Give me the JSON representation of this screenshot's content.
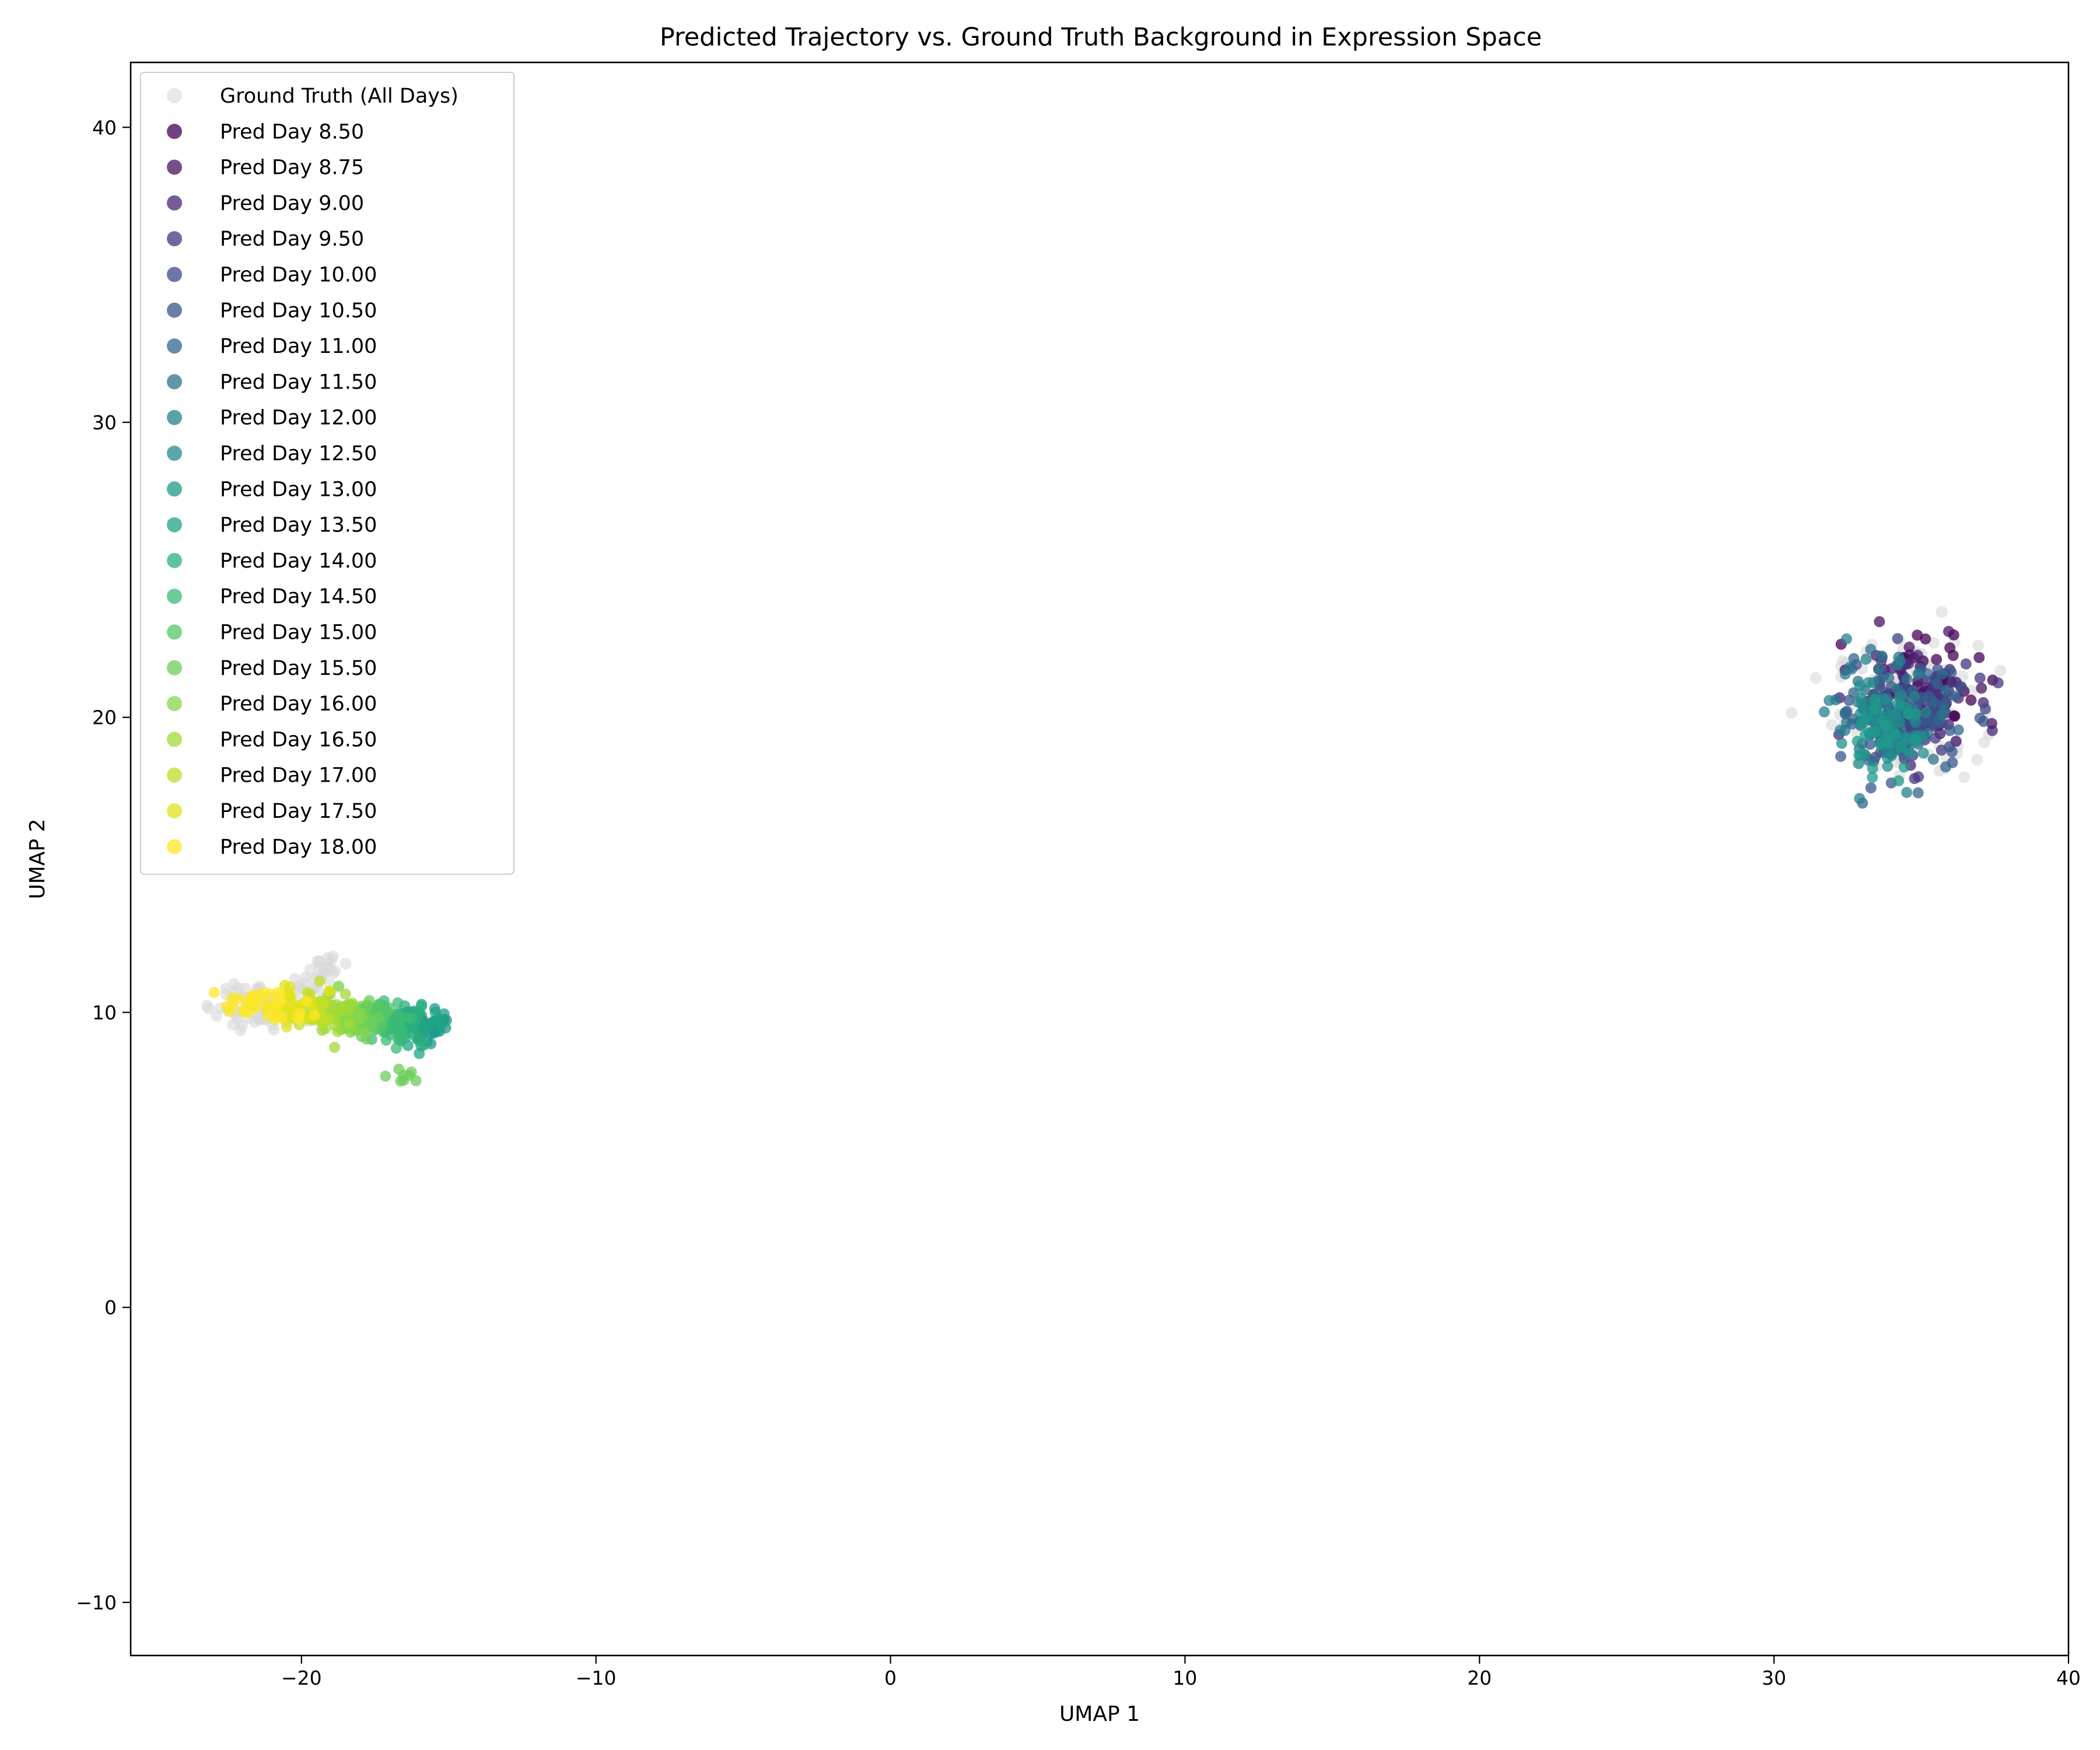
{
  "chart_data": {
    "type": "scatter",
    "title": "Predicted Trajectory vs. Ground Truth Background in Expression Space",
    "xlabel": "UMAP 1",
    "ylabel": "UMAP 2",
    "xlim": [
      -25.8,
      40.0
    ],
    "ylim": [
      -11.8,
      42.2
    ],
    "xticks": [
      -20,
      -10,
      0,
      10,
      20,
      30,
      40
    ],
    "yticks": [
      -10,
      0,
      10,
      20,
      30,
      40
    ],
    "xtick_labels": [
      "−20",
      "−10",
      "0",
      "10",
      "20",
      "30",
      "40"
    ],
    "ytick_labels": [
      "−10",
      "0",
      "10",
      "20",
      "30",
      "40"
    ],
    "grid": false,
    "legend_position": "upper-left",
    "series": [
      {
        "name": "Ground Truth (All Days)",
        "color": "#d9d9d9",
        "clusters": [
          {
            "cx": 34.5,
            "cy": 20.3,
            "sx": 1.2,
            "sy": 1.1,
            "n": 160
          },
          {
            "cx": -21.0,
            "cy": 10.3,
            "sx": 1.1,
            "sy": 0.45,
            "n": 90
          },
          {
            "cx": -19.3,
            "cy": 11.3,
            "sx": 0.4,
            "sy": 0.35,
            "n": 25
          }
        ]
      },
      {
        "name": "Pred Day 8.50",
        "color": "#440154",
        "clusters": [
          {
            "cx": 35.0,
            "cy": 21.0,
            "sx": 1.0,
            "sy": 0.9,
            "n": 40
          }
        ]
      },
      {
        "name": "Pred Day 8.75",
        "color": "#471365",
        "clusters": [
          {
            "cx": 34.8,
            "cy": 20.8,
            "sx": 1.0,
            "sy": 0.9,
            "n": 40
          }
        ]
      },
      {
        "name": "Pred Day 9.00",
        "color": "#482475",
        "clusters": [
          {
            "cx": 34.7,
            "cy": 20.6,
            "sx": 1.0,
            "sy": 0.9,
            "n": 40
          }
        ]
      },
      {
        "name": "Pred Day 9.50",
        "color": "#453581",
        "clusters": [
          {
            "cx": 34.7,
            "cy": 20.3,
            "sx": 1.0,
            "sy": 0.9,
            "n": 40
          }
        ]
      },
      {
        "name": "Pred Day 10.00",
        "color": "#3f4889",
        "clusters": [
          {
            "cx": 34.6,
            "cy": 20.0,
            "sx": 1.0,
            "sy": 0.9,
            "n": 40
          }
        ]
      },
      {
        "name": "Pred Day 10.50",
        "color": "#39558c",
        "clusters": [
          {
            "cx": 34.5,
            "cy": 19.8,
            "sx": 1.0,
            "sy": 0.9,
            "n": 40
          }
        ]
      },
      {
        "name": "Pred Day 11.00",
        "color": "#32658e",
        "clusters": [
          {
            "cx": 34.3,
            "cy": 20.1,
            "sx": 1.1,
            "sy": 1.0,
            "n": 40
          }
        ]
      },
      {
        "name": "Pred Day 11.50",
        "color": "#2c728e",
        "clusters": [
          {
            "cx": 34.1,
            "cy": 20.2,
            "sx": 1.1,
            "sy": 1.0,
            "n": 40
          }
        ]
      },
      {
        "name": "Pred Day 12.00",
        "color": "#27808e",
        "clusters": [
          {
            "cx": 33.8,
            "cy": 19.8,
            "sx": 0.9,
            "sy": 1.0,
            "n": 40
          }
        ]
      },
      {
        "name": "Pred Day 12.50",
        "color": "#228c8d",
        "clusters": [
          {
            "cx": 33.6,
            "cy": 19.5,
            "sx": 0.7,
            "sy": 0.6,
            "n": 40
          }
        ]
      },
      {
        "name": "Pred Day 13.00",
        "color": "#1f9a8a",
        "clusters": [
          {
            "cx": 33.6,
            "cy": 19.4,
            "sx": 0.6,
            "sy": 0.6,
            "n": 30
          },
          {
            "cx": -15.5,
            "cy": 9.5,
            "sx": 0.25,
            "sy": 0.3,
            "n": 25
          }
        ]
      },
      {
        "name": "Pred Day 13.50",
        "color": "#20a486",
        "clusters": [
          {
            "cx": -15.9,
            "cy": 9.6,
            "sx": 0.3,
            "sy": 0.3,
            "n": 30
          }
        ]
      },
      {
        "name": "Pred Day 14.00",
        "color": "#29af7f",
        "clusters": [
          {
            "cx": -16.4,
            "cy": 9.6,
            "sx": 0.3,
            "sy": 0.35,
            "n": 30
          }
        ]
      },
      {
        "name": "Pred Day 14.50",
        "color": "#3bbb75",
        "clusters": [
          {
            "cx": -16.9,
            "cy": 9.7,
            "sx": 0.3,
            "sy": 0.35,
            "n": 30
          }
        ]
      },
      {
        "name": "Pred Day 15.00",
        "color": "#54c568",
        "clusters": [
          {
            "cx": -17.4,
            "cy": 9.8,
            "sx": 0.3,
            "sy": 0.35,
            "n": 30
          }
        ]
      },
      {
        "name": "Pred Day 15.50",
        "color": "#6ccd5a",
        "clusters": [
          {
            "cx": -17.9,
            "cy": 9.8,
            "sx": 0.3,
            "sy": 0.35,
            "n": 30
          },
          {
            "cx": -16.6,
            "cy": 7.9,
            "sx": 0.25,
            "sy": 0.12,
            "n": 8
          }
        ]
      },
      {
        "name": "Pred Day 16.00",
        "color": "#86d549",
        "clusters": [
          {
            "cx": -18.4,
            "cy": 9.9,
            "sx": 0.3,
            "sy": 0.35,
            "n": 30
          }
        ]
      },
      {
        "name": "Pred Day 16.50",
        "color": "#a2da37",
        "clusters": [
          {
            "cx": -18.9,
            "cy": 10.0,
            "sx": 0.3,
            "sy": 0.35,
            "n": 30
          }
        ]
      },
      {
        "name": "Pred Day 17.00",
        "color": "#c0df25",
        "clusters": [
          {
            "cx": -19.5,
            "cy": 10.1,
            "sx": 0.35,
            "sy": 0.35,
            "n": 30
          }
        ]
      },
      {
        "name": "Pred Day 17.50",
        "color": "#dfe318",
        "clusters": [
          {
            "cx": -20.3,
            "cy": 10.2,
            "sx": 0.5,
            "sy": 0.3,
            "n": 30
          }
        ]
      },
      {
        "name": "Pred Day 18.00",
        "color": "#fde725",
        "clusters": [
          {
            "cx": -21.3,
            "cy": 10.2,
            "sx": 0.8,
            "sy": 0.3,
            "n": 35
          }
        ]
      }
    ]
  }
}
